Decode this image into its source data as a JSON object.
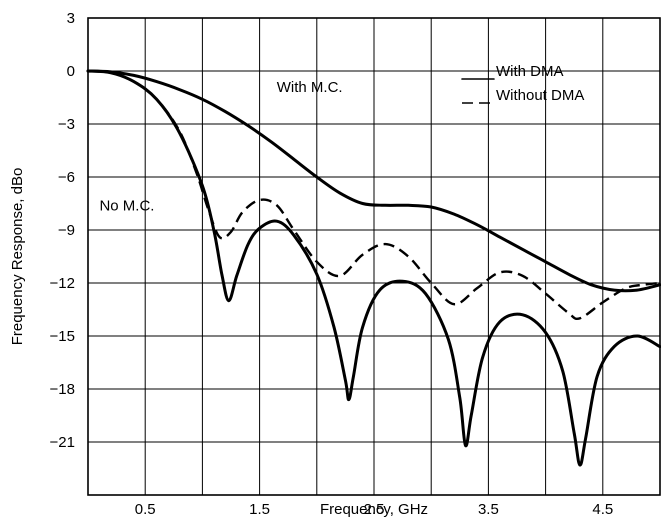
{
  "chart_data": {
    "type": "line",
    "xlabel": "Frequency, GHz",
    "ylabel": "Frequency Response, dBo",
    "xlim": [
      0,
      5
    ],
    "ylim": [
      -24,
      3
    ],
    "x_ticks": [
      0.5,
      1.5,
      2.5,
      3.5,
      4.5
    ],
    "x_tick_labels": [
      "0.5",
      "1.5",
      "2.5",
      "3.5",
      "4.5"
    ],
    "y_ticks": [
      3,
      0,
      -3,
      -6,
      -9,
      -12,
      -15,
      -18,
      -21
    ],
    "y_tick_labels": [
      "3",
      "0",
      "-3",
      "-6",
      "-9",
      "-12",
      "-15",
      "-18",
      "-21"
    ],
    "grid": true,
    "legend_position": "top-right",
    "legend": [
      {
        "label": "With DMA",
        "style": "solid"
      },
      {
        "label": "Without DMA",
        "style": "dashed"
      }
    ],
    "annotations": [
      {
        "text": "With M.C.",
        "x": 1.65,
        "y": -1.2
      },
      {
        "text": "No M.C.",
        "x": 0.1,
        "y": -7.9
      }
    ],
    "series": [
      {
        "style": "solid",
        "x": [
          0,
          0.2,
          0.4,
          0.6,
          0.8,
          1.0,
          1.2,
          1.4,
          1.6,
          1.8,
          2.0,
          2.2,
          2.4,
          2.6,
          2.8,
          3.0,
          3.2,
          3.4,
          3.6,
          3.8,
          4.0,
          4.2,
          4.4,
          4.6,
          4.8,
          5.0
        ],
        "y": [
          0,
          -0.05,
          -0.25,
          -0.6,
          -1.05,
          -1.6,
          -2.3,
          -3.1,
          -4.0,
          -5.0,
          -6.0,
          -6.9,
          -7.5,
          -7.6,
          -7.6,
          -7.7,
          -8.1,
          -8.7,
          -9.4,
          -10.1,
          -10.8,
          -11.5,
          -12.1,
          -12.4,
          -12.4,
          -12.1
        ]
      },
      {
        "style": "solid",
        "x": [
          0,
          0.2,
          0.4,
          0.6,
          0.8,
          1.0,
          1.1,
          1.17,
          1.23,
          1.3,
          1.4,
          1.5,
          1.65,
          1.8,
          2.0,
          2.15,
          2.25,
          2.28,
          2.32,
          2.4,
          2.55,
          2.75,
          2.95,
          3.15,
          3.25,
          3.3,
          3.35,
          3.45,
          3.6,
          3.8,
          4.0,
          4.15,
          4.25,
          4.3,
          4.35,
          4.45,
          4.6,
          4.8,
          5.0
        ],
        "y": [
          0,
          -0.1,
          -0.6,
          -1.6,
          -3.5,
          -6.5,
          -9.0,
          -11.5,
          -13.0,
          -11.6,
          -9.8,
          -8.9,
          -8.5,
          -9.3,
          -11.5,
          -14.5,
          -17.5,
          -18.6,
          -17.3,
          -14.5,
          -12.4,
          -11.9,
          -12.6,
          -15.2,
          -18.5,
          -21.2,
          -19.5,
          -16.2,
          -14.2,
          -13.8,
          -14.8,
          -17.0,
          -20.5,
          -22.3,
          -20.8,
          -17.3,
          -15.6,
          -15.0,
          -15.6
        ]
      },
      {
        "style": "dashed",
        "x": [
          0,
          0.2,
          0.4,
          0.6,
          0.8,
          0.95,
          1.05,
          1.15,
          1.25,
          1.35,
          1.5,
          1.65,
          1.8,
          2.0,
          2.2,
          2.4,
          2.6,
          2.8,
          3.0,
          3.2,
          3.4,
          3.6,
          3.8,
          4.0,
          4.2,
          4.3,
          4.5,
          4.7,
          4.85,
          5.0
        ],
        "y": [
          0,
          -0.1,
          -0.6,
          -1.6,
          -3.4,
          -5.8,
          -7.8,
          -9.4,
          -9.1,
          -8.0,
          -7.3,
          -7.6,
          -9.0,
          -10.8,
          -11.6,
          -10.4,
          -9.8,
          -10.5,
          -12.0,
          -13.2,
          -12.3,
          -11.4,
          -11.6,
          -12.6,
          -13.7,
          -14.0,
          -13.1,
          -12.3,
          -12.1,
          -12.0
        ]
      }
    ]
  }
}
